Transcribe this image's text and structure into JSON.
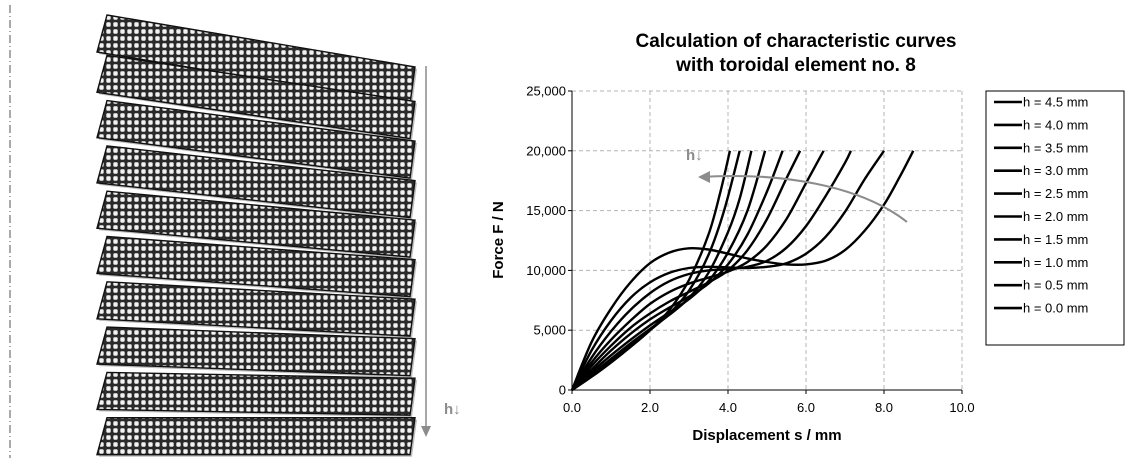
{
  "left_panel": {
    "arrow_label": "h↓",
    "element_count": 10
  },
  "chart_data": {
    "type": "line",
    "title_line1": "Calculation of characteristic curves",
    "title_line2": "with toroidal element no. 8",
    "xlabel": "Displacement s / mm",
    "ylabel": "Force F / N",
    "xlim": [
      0,
      10
    ],
    "ylim": [
      0,
      25000
    ],
    "x_ticks": [
      "0.0",
      "2.0",
      "4.0",
      "6.0",
      "8.0",
      "10.0"
    ],
    "y_ticks": [
      "0",
      "5,000",
      "10,000",
      "15,000",
      "20,000",
      "25,000"
    ],
    "grid": true,
    "legend_position": "right",
    "annotation": "h↓",
    "series_color": "#000000",
    "annotation_color": "#8c8c8c",
    "series": [
      {
        "name": "h = 4.5 mm",
        "points": [
          [
            0,
            0
          ],
          [
            0.5,
            4000
          ],
          [
            1,
            6800
          ],
          [
            1.5,
            9000
          ],
          [
            2,
            10600
          ],
          [
            2.5,
            11500
          ],
          [
            3,
            11850
          ],
          [
            3.5,
            11750
          ],
          [
            4,
            11400
          ],
          [
            4.5,
            11000
          ],
          [
            5,
            10700
          ],
          [
            5.5,
            10500
          ],
          [
            6,
            10500
          ],
          [
            6.5,
            10800
          ],
          [
            7,
            11700
          ],
          [
            7.5,
            13300
          ],
          [
            8,
            15500
          ],
          [
            8.4,
            17800
          ],
          [
            8.75,
            20000
          ]
        ]
      },
      {
        "name": "h = 4.0 mm",
        "points": [
          [
            0,
            0
          ],
          [
            0.5,
            3300
          ],
          [
            1,
            5800
          ],
          [
            1.5,
            7700
          ],
          [
            2,
            9000
          ],
          [
            2.5,
            9800
          ],
          [
            3,
            10200
          ],
          [
            3.5,
            10300
          ],
          [
            4,
            10250
          ],
          [
            4.5,
            10200
          ],
          [
            5,
            10300
          ],
          [
            5.5,
            10600
          ],
          [
            6,
            11400
          ],
          [
            6.5,
            12800
          ],
          [
            7,
            14900
          ],
          [
            7.5,
            17600
          ],
          [
            8,
            20000
          ]
        ]
      },
      {
        "name": "h = 3.5 mm",
        "points": [
          [
            0,
            0
          ],
          [
            0.5,
            2700
          ],
          [
            1,
            4900
          ],
          [
            1.5,
            6700
          ],
          [
            2,
            8100
          ],
          [
            2.5,
            9100
          ],
          [
            3,
            9700
          ],
          [
            3.5,
            10000
          ],
          [
            4,
            10100
          ],
          [
            4.5,
            10300
          ],
          [
            5,
            10800
          ],
          [
            5.5,
            11900
          ],
          [
            6,
            13700
          ],
          [
            6.5,
            16200
          ],
          [
            7,
            19000
          ],
          [
            7.15,
            20000
          ]
        ]
      },
      {
        "name": "h = 3.0 mm",
        "points": [
          [
            0,
            0
          ],
          [
            0.5,
            2300
          ],
          [
            1,
            4200
          ],
          [
            1.5,
            5800
          ],
          [
            2,
            7200
          ],
          [
            2.5,
            8200
          ],
          [
            3,
            8900
          ],
          [
            3.5,
            9400
          ],
          [
            4,
            9900
          ],
          [
            4.5,
            10700
          ],
          [
            5,
            12100
          ],
          [
            5.5,
            14300
          ],
          [
            6,
            17300
          ],
          [
            6.45,
            20000
          ]
        ]
      },
      {
        "name": "h = 2.5 mm",
        "points": [
          [
            0,
            0
          ],
          [
            0.5,
            2000
          ],
          [
            1,
            3700
          ],
          [
            1.5,
            5200
          ],
          [
            2,
            6400
          ],
          [
            2.5,
            7400
          ],
          [
            3,
            8200
          ],
          [
            3.5,
            9000
          ],
          [
            4,
            10000
          ],
          [
            4.5,
            11700
          ],
          [
            5,
            14300
          ],
          [
            5.5,
            17700
          ],
          [
            5.85,
            20000
          ]
        ]
      },
      {
        "name": "h = 2.0 mm",
        "points": [
          [
            0,
            0
          ],
          [
            0.5,
            1700
          ],
          [
            1,
            3300
          ],
          [
            1.5,
            4700
          ],
          [
            2,
            5900
          ],
          [
            2.5,
            6900
          ],
          [
            3,
            7800
          ],
          [
            3.5,
            8900
          ],
          [
            4,
            10500
          ],
          [
            4.5,
            13000
          ],
          [
            5,
            16600
          ],
          [
            5.4,
            20000
          ]
        ]
      },
      {
        "name": "h = 1.5 mm",
        "points": [
          [
            0,
            0
          ],
          [
            0.5,
            1500
          ],
          [
            1,
            2900
          ],
          [
            1.5,
            4200
          ],
          [
            2,
            5400
          ],
          [
            2.5,
            6500
          ],
          [
            3,
            7600
          ],
          [
            3.5,
            9100
          ],
          [
            4,
            11500
          ],
          [
            4.5,
            15000
          ],
          [
            4.95,
            20000
          ]
        ]
      },
      {
        "name": "h = 1.0 mm",
        "points": [
          [
            0,
            0
          ],
          [
            0.5,
            1300
          ],
          [
            1,
            2600
          ],
          [
            1.5,
            3900
          ],
          [
            2,
            5100
          ],
          [
            2.5,
            6300
          ],
          [
            3,
            7700
          ],
          [
            3.5,
            9800
          ],
          [
            4,
            13200
          ],
          [
            4.3,
            16000
          ],
          [
            4.6,
            20000
          ]
        ]
      },
      {
        "name": "h = 0.5 mm",
        "points": [
          [
            0,
            0
          ],
          [
            0.5,
            1200
          ],
          [
            1,
            2400
          ],
          [
            1.5,
            3700
          ],
          [
            2,
            5000
          ],
          [
            2.5,
            6400
          ],
          [
            3,
            8300
          ],
          [
            3.5,
            11300
          ],
          [
            3.9,
            15000
          ],
          [
            4.3,
            20000
          ]
        ]
      },
      {
        "name": "h = 0.0 mm",
        "points": [
          [
            0,
            0
          ],
          [
            0.5,
            1100
          ],
          [
            1,
            2300
          ],
          [
            1.5,
            3600
          ],
          [
            2,
            5000
          ],
          [
            2.5,
            6700
          ],
          [
            3,
            9200
          ],
          [
            3.5,
            13000
          ],
          [
            3.8,
            16500
          ],
          [
            4.05,
            20000
          ]
        ]
      }
    ]
  }
}
